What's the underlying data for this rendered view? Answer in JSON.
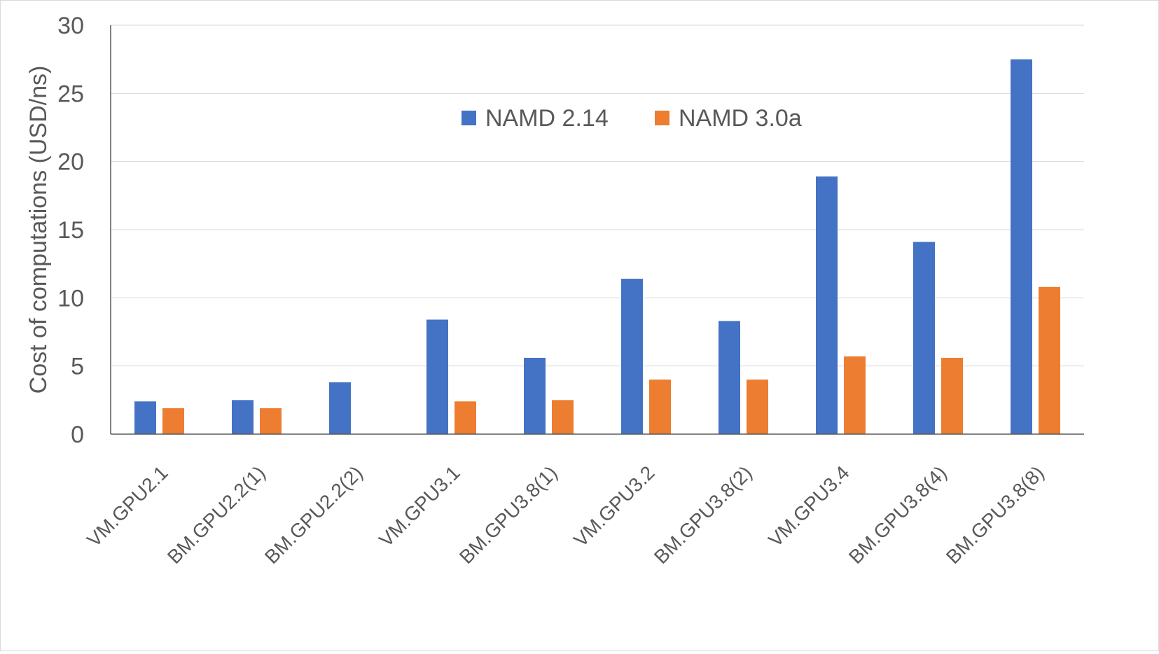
{
  "chart_data": {
    "type": "bar",
    "title": "",
    "xlabel": "",
    "ylabel": "Cost of computations  (USD/ns)",
    "ylim": [
      0,
      30
    ],
    "yticks": [
      0,
      5,
      10,
      15,
      20,
      25,
      30
    ],
    "grid": true,
    "legend_position": "top-center",
    "categories": [
      "VM.GPU2.1",
      "BM.GPU2.2(1)",
      "BM.GPU2.2(2)",
      "VM.GPU3.1",
      "BM.GPU3.8(1)",
      "VM.GPU3.2",
      "BM.GPU3.8(2)",
      "VM.GPU3.4",
      "BM.GPU3.8(4)",
      "BM.GPU3.8(8)"
    ],
    "series": [
      {
        "name": "NAMD 2.14",
        "color": "#4472C4",
        "values": [
          2.4,
          2.5,
          3.8,
          8.4,
          5.6,
          11.4,
          8.3,
          18.9,
          14.1,
          27.5
        ]
      },
      {
        "name": "NAMD 3.0a",
        "color": "#ED7D31",
        "values": [
          1.9,
          1.9,
          null,
          2.4,
          2.5,
          4.0,
          4.0,
          5.7,
          5.6,
          10.8
        ]
      }
    ]
  }
}
